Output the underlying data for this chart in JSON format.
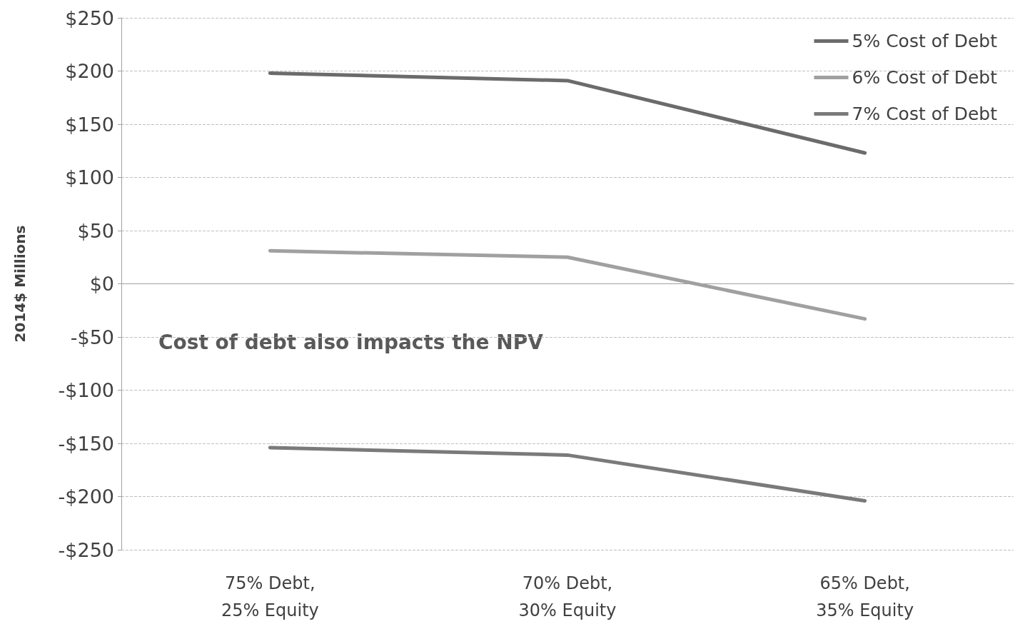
{
  "chart_data": {
    "type": "line",
    "ylabel": "2014$ Millions",
    "categories": [
      "75% Debt,\n25% Equity",
      "70% Debt,\n30% Equity",
      "65% Debt,\n35% Equity"
    ],
    "series": [
      {
        "name": "5% Cost of Debt",
        "color": "#6b6b6b",
        "values": [
          198,
          191,
          123
        ]
      },
      {
        "name": "6% Cost of Debt",
        "color": "#a0a0a0",
        "values": [
          31,
          25,
          -33
        ]
      },
      {
        "name": "7% Cost of Debt",
        "color": "#7a7a7a",
        "values": [
          -154,
          -161,
          -204
        ]
      }
    ],
    "ylim": [
      -250,
      250
    ],
    "yticks": [
      {
        "value": -250,
        "label": "-$250"
      },
      {
        "value": -200,
        "label": "-$200"
      },
      {
        "value": -150,
        "label": "-$150"
      },
      {
        "value": -100,
        "label": "-$100"
      },
      {
        "value": -50,
        "label": "-$50"
      },
      {
        "value": 0,
        "label": "$0"
      },
      {
        "value": 50,
        "label": "$50"
      },
      {
        "value": 100,
        "label": "$100"
      },
      {
        "value": 150,
        "label": "$150"
      },
      {
        "value": 200,
        "label": "$200"
      },
      {
        "value": 250,
        "label": "$250"
      }
    ],
    "annotations": [
      "Cost of debt also impacts the NPV"
    ],
    "grid": "y",
    "legend": "top right",
    "marker": "none",
    "line_style": "solid"
  }
}
